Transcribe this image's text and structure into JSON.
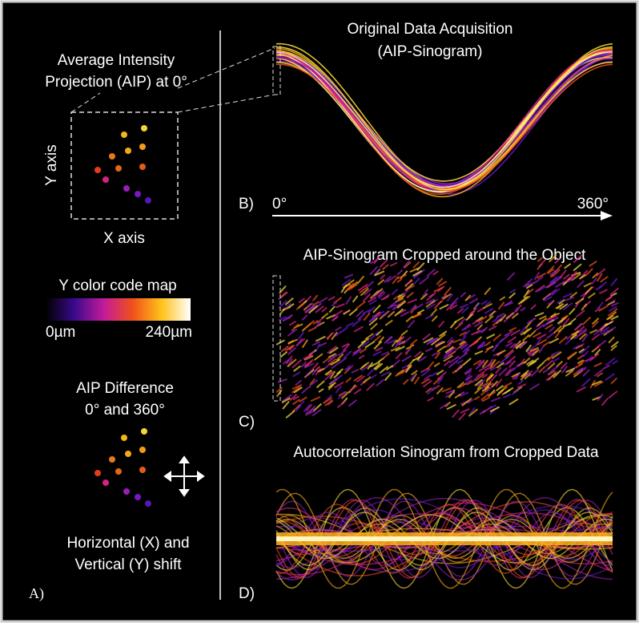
{
  "panel_a": {
    "label": "A)",
    "aip_title": [
      "Average Intensity",
      "Projection (AIP) at 0°"
    ],
    "y_axis": "Y axis",
    "x_axis": "X axis",
    "color_map": {
      "title": "Y color code map",
      "min_label": "0µm",
      "max_label": "240µm"
    },
    "difference_title": [
      "AIP Difference",
      "0° and 360°"
    ],
    "shift_caption": [
      "Horizontal (X) and",
      "Vertical (Y) shift"
    ]
  },
  "panel_b": {
    "label": "B)",
    "title": [
      "Original Data Acquisition",
      "(AIP-Sinogram)"
    ],
    "start_angle": "0°",
    "end_angle": "360°"
  },
  "panel_c": {
    "label": "C)",
    "title": "AIP-Sinogram Cropped around the Object"
  },
  "panel_d": {
    "label": "D)",
    "title": "Autocorrelation Sinogram from Cropped Data"
  }
}
